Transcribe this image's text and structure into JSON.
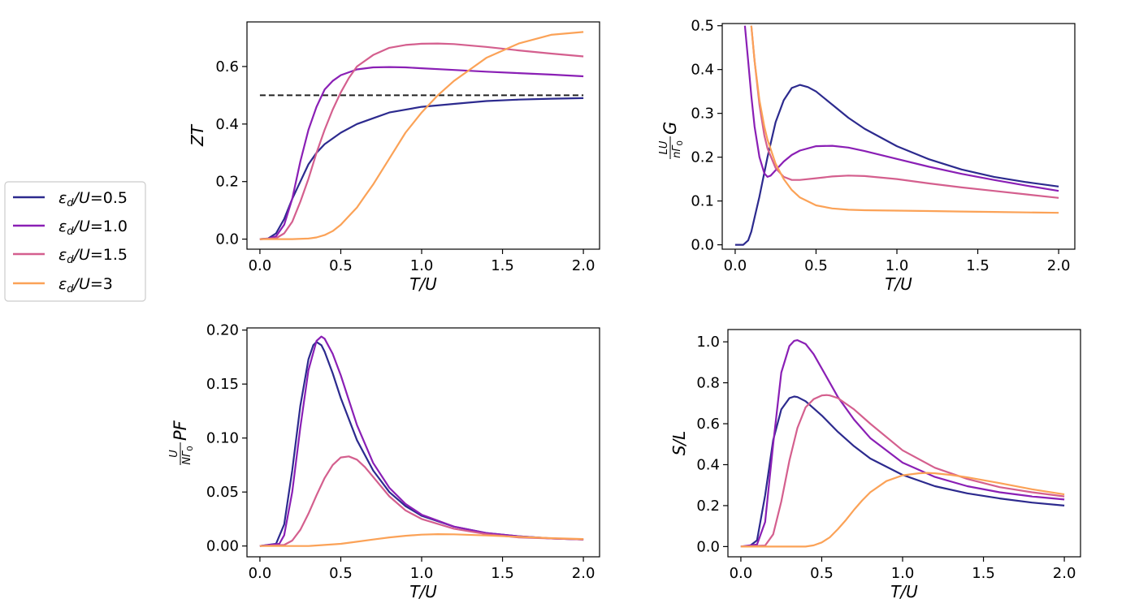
{
  "legend": {
    "entries": [
      {
        "label_pre": "ε",
        "label_sub": "d",
        "label_post": "/U=0.5",
        "color": "#2c2a8e"
      },
      {
        "label_pre": "ε",
        "label_sub": "d",
        "label_post": "/U=1.0",
        "color": "#8a1fb5"
      },
      {
        "label_pre": "ε",
        "label_sub": "d",
        "label_post": "/U=1.5",
        "color": "#d45f8e"
      },
      {
        "label_pre": "ε",
        "label_sub": "d",
        "label_post": "/U=3",
        "color": "#fba257"
      }
    ]
  },
  "chart_data": [
    {
      "id": "zt",
      "type": "line",
      "xlabel": "T/U",
      "ylabel": "ZT",
      "xlim": [
        -0.08,
        2.1
      ],
      "ylim": [
        -0.035,
        0.755
      ],
      "xticks": [
        0.0,
        0.5,
        1.0,
        1.5,
        2.0
      ],
      "xtick_labels": [
        "0.0",
        "0.5",
        "1.0",
        "1.5",
        "2.0"
      ],
      "yticks": [
        0.0,
        0.2,
        0.4,
        0.6
      ],
      "ytick_labels": [
        "0.0",
        "0.2",
        "0.4",
        "0.6"
      ],
      "reference_line": {
        "y": 0.5,
        "x": [
          0.0,
          2.0
        ],
        "style": "dashed",
        "color": "#222222"
      },
      "series": [
        {
          "color": "#2c2a8e",
          "x": [
            0.0,
            0.05,
            0.1,
            0.15,
            0.2,
            0.25,
            0.3,
            0.35,
            0.4,
            0.5,
            0.6,
            0.7,
            0.8,
            1.0,
            1.2,
            1.4,
            1.6,
            1.8,
            2.0
          ],
          "y": [
            0.0,
            0.002,
            0.02,
            0.07,
            0.14,
            0.2,
            0.26,
            0.3,
            0.33,
            0.37,
            0.4,
            0.42,
            0.44,
            0.46,
            0.47,
            0.48,
            0.485,
            0.488,
            0.49
          ]
        },
        {
          "color": "#8a1fb5",
          "x": [
            0.0,
            0.05,
            0.1,
            0.15,
            0.2,
            0.25,
            0.3,
            0.35,
            0.4,
            0.45,
            0.5,
            0.6,
            0.7,
            0.8,
            0.9,
            1.0,
            1.2,
            1.4,
            1.6,
            1.8,
            2.0
          ],
          "y": [
            0.0,
            0.001,
            0.01,
            0.05,
            0.14,
            0.27,
            0.38,
            0.46,
            0.52,
            0.55,
            0.57,
            0.59,
            0.597,
            0.598,
            0.597,
            0.594,
            0.588,
            0.582,
            0.577,
            0.572,
            0.566
          ]
        },
        {
          "color": "#d45f8e",
          "x": [
            0.0,
            0.1,
            0.15,
            0.2,
            0.25,
            0.3,
            0.35,
            0.4,
            0.45,
            0.5,
            0.55,
            0.6,
            0.7,
            0.8,
            0.9,
            1.0,
            1.1,
            1.2,
            1.4,
            1.6,
            1.8,
            2.0
          ],
          "y": [
            0.0,
            0.003,
            0.02,
            0.06,
            0.13,
            0.21,
            0.3,
            0.38,
            0.45,
            0.51,
            0.56,
            0.6,
            0.64,
            0.665,
            0.675,
            0.679,
            0.68,
            0.678,
            0.668,
            0.656,
            0.645,
            0.635
          ]
        },
        {
          "color": "#fba257",
          "x": [
            0.0,
            0.2,
            0.3,
            0.35,
            0.4,
            0.45,
            0.5,
            0.55,
            0.6,
            0.65,
            0.7,
            0.8,
            0.9,
            1.0,
            1.1,
            1.2,
            1.3,
            1.4,
            1.6,
            1.8,
            2.0
          ],
          "y": [
            0.0,
            0.0,
            0.002,
            0.006,
            0.014,
            0.028,
            0.05,
            0.08,
            0.11,
            0.15,
            0.19,
            0.28,
            0.37,
            0.44,
            0.5,
            0.55,
            0.59,
            0.63,
            0.68,
            0.71,
            0.72
          ]
        }
      ]
    },
    {
      "id": "g",
      "type": "line",
      "xlabel": "T/U",
      "ylabel_num": "LU",
      "ylabel_den": "nΓ",
      "ylabel_den_sub": "0",
      "ylabel_main": "G",
      "xlim": [
        -0.08,
        2.1
      ],
      "ylim": [
        -0.01,
        0.505
      ],
      "xticks": [
        0.0,
        0.5,
        1.0,
        1.5,
        2.0
      ],
      "xtick_labels": [
        "0.0",
        "0.5",
        "1.0",
        "1.5",
        "2.0"
      ],
      "yticks": [
        0.0,
        0.1,
        0.2,
        0.3,
        0.4,
        0.5
      ],
      "ytick_labels": [
        "0.0",
        "0.1",
        "0.2",
        "0.3",
        "0.4",
        "0.5"
      ],
      "series": [
        {
          "color": "#2c2a8e",
          "x": [
            0.0,
            0.05,
            0.08,
            0.1,
            0.15,
            0.2,
            0.25,
            0.3,
            0.35,
            0.4,
            0.45,
            0.5,
            0.6,
            0.7,
            0.8,
            1.0,
            1.2,
            1.4,
            1.6,
            1.8,
            2.0
          ],
          "y": [
            0.0,
            0.0,
            0.01,
            0.03,
            0.11,
            0.2,
            0.28,
            0.33,
            0.358,
            0.365,
            0.36,
            0.35,
            0.32,
            0.29,
            0.265,
            0.225,
            0.195,
            0.172,
            0.155,
            0.143,
            0.133
          ]
        },
        {
          "color": "#8a1fb5",
          "x": [
            0.06,
            0.08,
            0.1,
            0.12,
            0.15,
            0.18,
            0.2,
            0.22,
            0.25,
            0.3,
            0.35,
            0.4,
            0.5,
            0.6,
            0.7,
            0.8,
            1.0,
            1.2,
            1.4,
            1.6,
            1.8,
            2.0
          ],
          "y": [
            0.5,
            0.42,
            0.34,
            0.27,
            0.2,
            0.163,
            0.155,
            0.158,
            0.17,
            0.19,
            0.205,
            0.215,
            0.225,
            0.226,
            0.222,
            0.214,
            0.196,
            0.178,
            0.162,
            0.148,
            0.135,
            0.123
          ]
        },
        {
          "color": "#d45f8e",
          "x": [
            0.1,
            0.12,
            0.15,
            0.18,
            0.2,
            0.25,
            0.3,
            0.35,
            0.4,
            0.5,
            0.6,
            0.7,
            0.8,
            1.0,
            1.2,
            1.4,
            1.6,
            1.8,
            2.0
          ],
          "y": [
            0.5,
            0.42,
            0.32,
            0.25,
            0.22,
            0.175,
            0.155,
            0.148,
            0.148,
            0.152,
            0.156,
            0.158,
            0.157,
            0.15,
            0.14,
            0.131,
            0.123,
            0.115,
            0.107
          ]
        },
        {
          "color": "#fba257",
          "x": [
            0.1,
            0.12,
            0.15,
            0.18,
            0.2,
            0.25,
            0.3,
            0.35,
            0.4,
            0.5,
            0.6,
            0.7,
            0.8,
            1.0,
            1.2,
            1.4,
            1.6,
            1.8,
            2.0
          ],
          "y": [
            0.5,
            0.42,
            0.33,
            0.27,
            0.24,
            0.185,
            0.15,
            0.125,
            0.108,
            0.09,
            0.083,
            0.08,
            0.079,
            0.078,
            0.077,
            0.076,
            0.075,
            0.074,
            0.073
          ]
        }
      ]
    },
    {
      "id": "pf",
      "type": "line",
      "xlabel": "T/U",
      "ylabel_num": "U",
      "ylabel_den": "NΓ",
      "ylabel_den_sub": "0",
      "ylabel_main": "PF",
      "xlim": [
        -0.08,
        2.1
      ],
      "ylim": [
        -0.01,
        0.202
      ],
      "xticks": [
        0.0,
        0.5,
        1.0,
        1.5,
        2.0
      ],
      "xtick_labels": [
        "0.0",
        "0.5",
        "1.0",
        "1.5",
        "2.0"
      ],
      "yticks": [
        0.0,
        0.05,
        0.1,
        0.15,
        0.2
      ],
      "ytick_labels": [
        "0.00",
        "0.05",
        "0.10",
        "0.15",
        "0.20"
      ],
      "series": [
        {
          "color": "#2c2a8e",
          "x": [
            0.0,
            0.1,
            0.15,
            0.2,
            0.25,
            0.3,
            0.33,
            0.35,
            0.38,
            0.4,
            0.45,
            0.5,
            0.6,
            0.7,
            0.8,
            0.9,
            1.0,
            1.2,
            1.4,
            1.6,
            1.8,
            2.0
          ],
          "y": [
            0.0,
            0.002,
            0.02,
            0.07,
            0.13,
            0.173,
            0.186,
            0.189,
            0.186,
            0.18,
            0.16,
            0.137,
            0.098,
            0.07,
            0.05,
            0.037,
            0.028,
            0.018,
            0.012,
            0.009,
            0.007,
            0.006
          ]
        },
        {
          "color": "#8a1fb5",
          "x": [
            0.0,
            0.12,
            0.15,
            0.2,
            0.25,
            0.3,
            0.35,
            0.38,
            0.4,
            0.45,
            0.5,
            0.6,
            0.7,
            0.8,
            0.9,
            1.0,
            1.2,
            1.4,
            1.6,
            1.8,
            2.0
          ],
          "y": [
            0.0,
            0.002,
            0.01,
            0.05,
            0.11,
            0.163,
            0.19,
            0.194,
            0.192,
            0.178,
            0.158,
            0.112,
            0.077,
            0.054,
            0.039,
            0.029,
            0.018,
            0.012,
            0.009,
            0.007,
            0.006
          ]
        },
        {
          "color": "#d45f8e",
          "x": [
            0.0,
            0.15,
            0.2,
            0.25,
            0.3,
            0.35,
            0.4,
            0.45,
            0.5,
            0.55,
            0.6,
            0.65,
            0.7,
            0.8,
            0.9,
            1.0,
            1.2,
            1.4,
            1.6,
            1.8,
            2.0
          ],
          "y": [
            0.0,
            0.001,
            0.005,
            0.015,
            0.03,
            0.047,
            0.063,
            0.075,
            0.082,
            0.083,
            0.08,
            0.073,
            0.064,
            0.046,
            0.033,
            0.025,
            0.016,
            0.011,
            0.008,
            0.007,
            0.006
          ]
        },
        {
          "color": "#fba257",
          "x": [
            0.0,
            0.3,
            0.4,
            0.5,
            0.6,
            0.7,
            0.8,
            0.9,
            1.0,
            1.1,
            1.2,
            1.4,
            1.6,
            1.8,
            2.0
          ],
          "y": [
            0.0,
            0.0,
            0.001,
            0.002,
            0.004,
            0.006,
            0.008,
            0.0095,
            0.0105,
            0.011,
            0.0108,
            0.0098,
            0.0085,
            0.0073,
            0.0065
          ]
        }
      ]
    },
    {
      "id": "sl",
      "type": "line",
      "xlabel": "T/U",
      "ylabel": "S/L",
      "xlim": [
        -0.08,
        2.1
      ],
      "ylim": [
        -0.05,
        1.06
      ],
      "xticks": [
        0.0,
        0.5,
        1.0,
        1.5,
        2.0
      ],
      "xtick_labels": [
        "0.0",
        "0.5",
        "1.0",
        "1.5",
        "2.0"
      ],
      "yticks": [
        0.0,
        0.2,
        0.4,
        0.6,
        0.8,
        1.0
      ],
      "ytick_labels": [
        "0.0",
        "0.2",
        "0.4",
        "0.6",
        "0.8",
        "1.0"
      ],
      "series": [
        {
          "color": "#2c2a8e",
          "x": [
            0.0,
            0.05,
            0.1,
            0.15,
            0.2,
            0.25,
            0.3,
            0.33,
            0.35,
            0.4,
            0.5,
            0.6,
            0.7,
            0.8,
            1.0,
            1.2,
            1.4,
            1.6,
            1.8,
            2.0
          ],
          "y": [
            0.0,
            0.0,
            0.03,
            0.25,
            0.52,
            0.67,
            0.725,
            0.733,
            0.73,
            0.71,
            0.64,
            0.56,
            0.49,
            0.43,
            0.35,
            0.295,
            0.26,
            0.235,
            0.215,
            0.2
          ]
        },
        {
          "color": "#8a1fb5",
          "x": [
            0.0,
            0.1,
            0.15,
            0.2,
            0.25,
            0.3,
            0.33,
            0.35,
            0.4,
            0.45,
            0.5,
            0.6,
            0.7,
            0.8,
            1.0,
            1.2,
            1.4,
            1.6,
            1.8,
            2.0
          ],
          "y": [
            0.0,
            0.01,
            0.12,
            0.5,
            0.85,
            0.98,
            1.005,
            1.008,
            0.99,
            0.94,
            0.87,
            0.73,
            0.62,
            0.53,
            0.41,
            0.34,
            0.295,
            0.265,
            0.245,
            0.23
          ]
        },
        {
          "color": "#d45f8e",
          "x": [
            0.0,
            0.15,
            0.2,
            0.25,
            0.3,
            0.35,
            0.4,
            0.45,
            0.5,
            0.53,
            0.55,
            0.6,
            0.7,
            0.8,
            1.0,
            1.2,
            1.4,
            1.6,
            1.8,
            2.0
          ],
          "y": [
            0.0,
            0.005,
            0.06,
            0.22,
            0.42,
            0.58,
            0.68,
            0.72,
            0.738,
            0.74,
            0.738,
            0.725,
            0.67,
            0.6,
            0.47,
            0.385,
            0.33,
            0.29,
            0.265,
            0.245
          ]
        },
        {
          "color": "#fba257",
          "x": [
            0.0,
            0.4,
            0.45,
            0.5,
            0.55,
            0.6,
            0.65,
            0.7,
            0.75,
            0.8,
            0.9,
            1.0,
            1.1,
            1.15,
            1.2,
            1.3,
            1.4,
            1.6,
            1.8,
            2.0
          ],
          "y": [
            0.0,
            0.0,
            0.006,
            0.02,
            0.045,
            0.085,
            0.13,
            0.18,
            0.225,
            0.265,
            0.32,
            0.348,
            0.358,
            0.36,
            0.358,
            0.35,
            0.338,
            0.31,
            0.28,
            0.255
          ]
        }
      ]
    }
  ]
}
